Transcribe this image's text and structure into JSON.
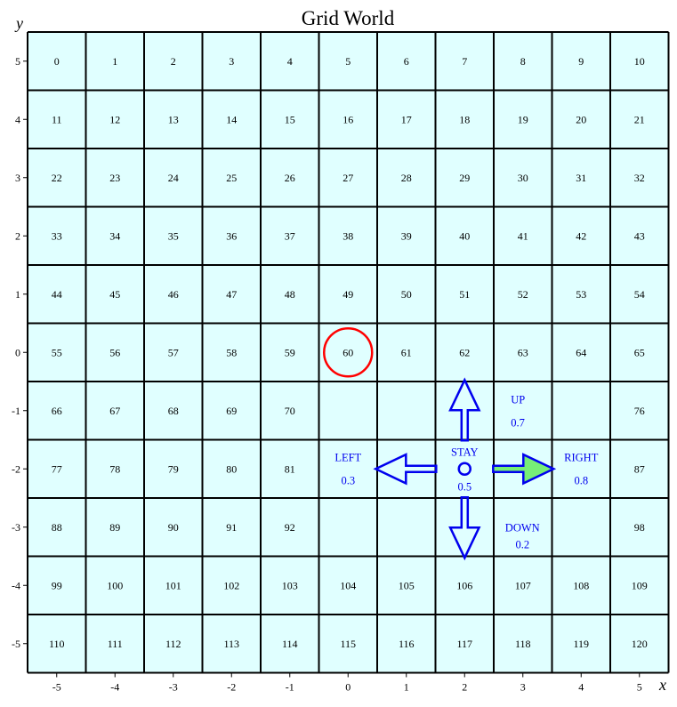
{
  "title": "Grid World",
  "axes": {
    "x_label": "x",
    "y_label": "y"
  },
  "grid": {
    "x_range": [
      -5,
      5
    ],
    "y_range": [
      -5,
      5
    ],
    "x_ticks": [
      "-5",
      "-4",
      "-3",
      "-2",
      "-1",
      "0",
      "1",
      "2",
      "3",
      "4",
      "5"
    ],
    "y_ticks": [
      "5",
      "4",
      "3",
      "2",
      "1",
      "0",
      "-1",
      "-2",
      "-3",
      "-4",
      "-5"
    ],
    "cell_fill": "#e0ffff",
    "line_color": "#000000",
    "blank_cells": [
      71,
      72,
      73,
      74,
      75,
      82,
      83,
      84,
      85,
      86,
      93,
      94,
      95,
      96,
      97
    ]
  },
  "agent": {
    "cell": 60,
    "x": 0,
    "y": 0,
    "color": "#ff0000",
    "shape": "circle"
  },
  "actions": {
    "color": "#0000ee",
    "highlight_fill": "#77ee77",
    "center": {
      "x": 2,
      "y": -2
    },
    "chosen": "RIGHT",
    "items": [
      {
        "name": "UP",
        "prob": "0.7"
      },
      {
        "name": "DOWN",
        "prob": "0.2"
      },
      {
        "name": "LEFT",
        "prob": "0.3"
      },
      {
        "name": "RIGHT",
        "prob": "0.8"
      },
      {
        "name": "STAY",
        "prob": "0.5"
      }
    ]
  }
}
